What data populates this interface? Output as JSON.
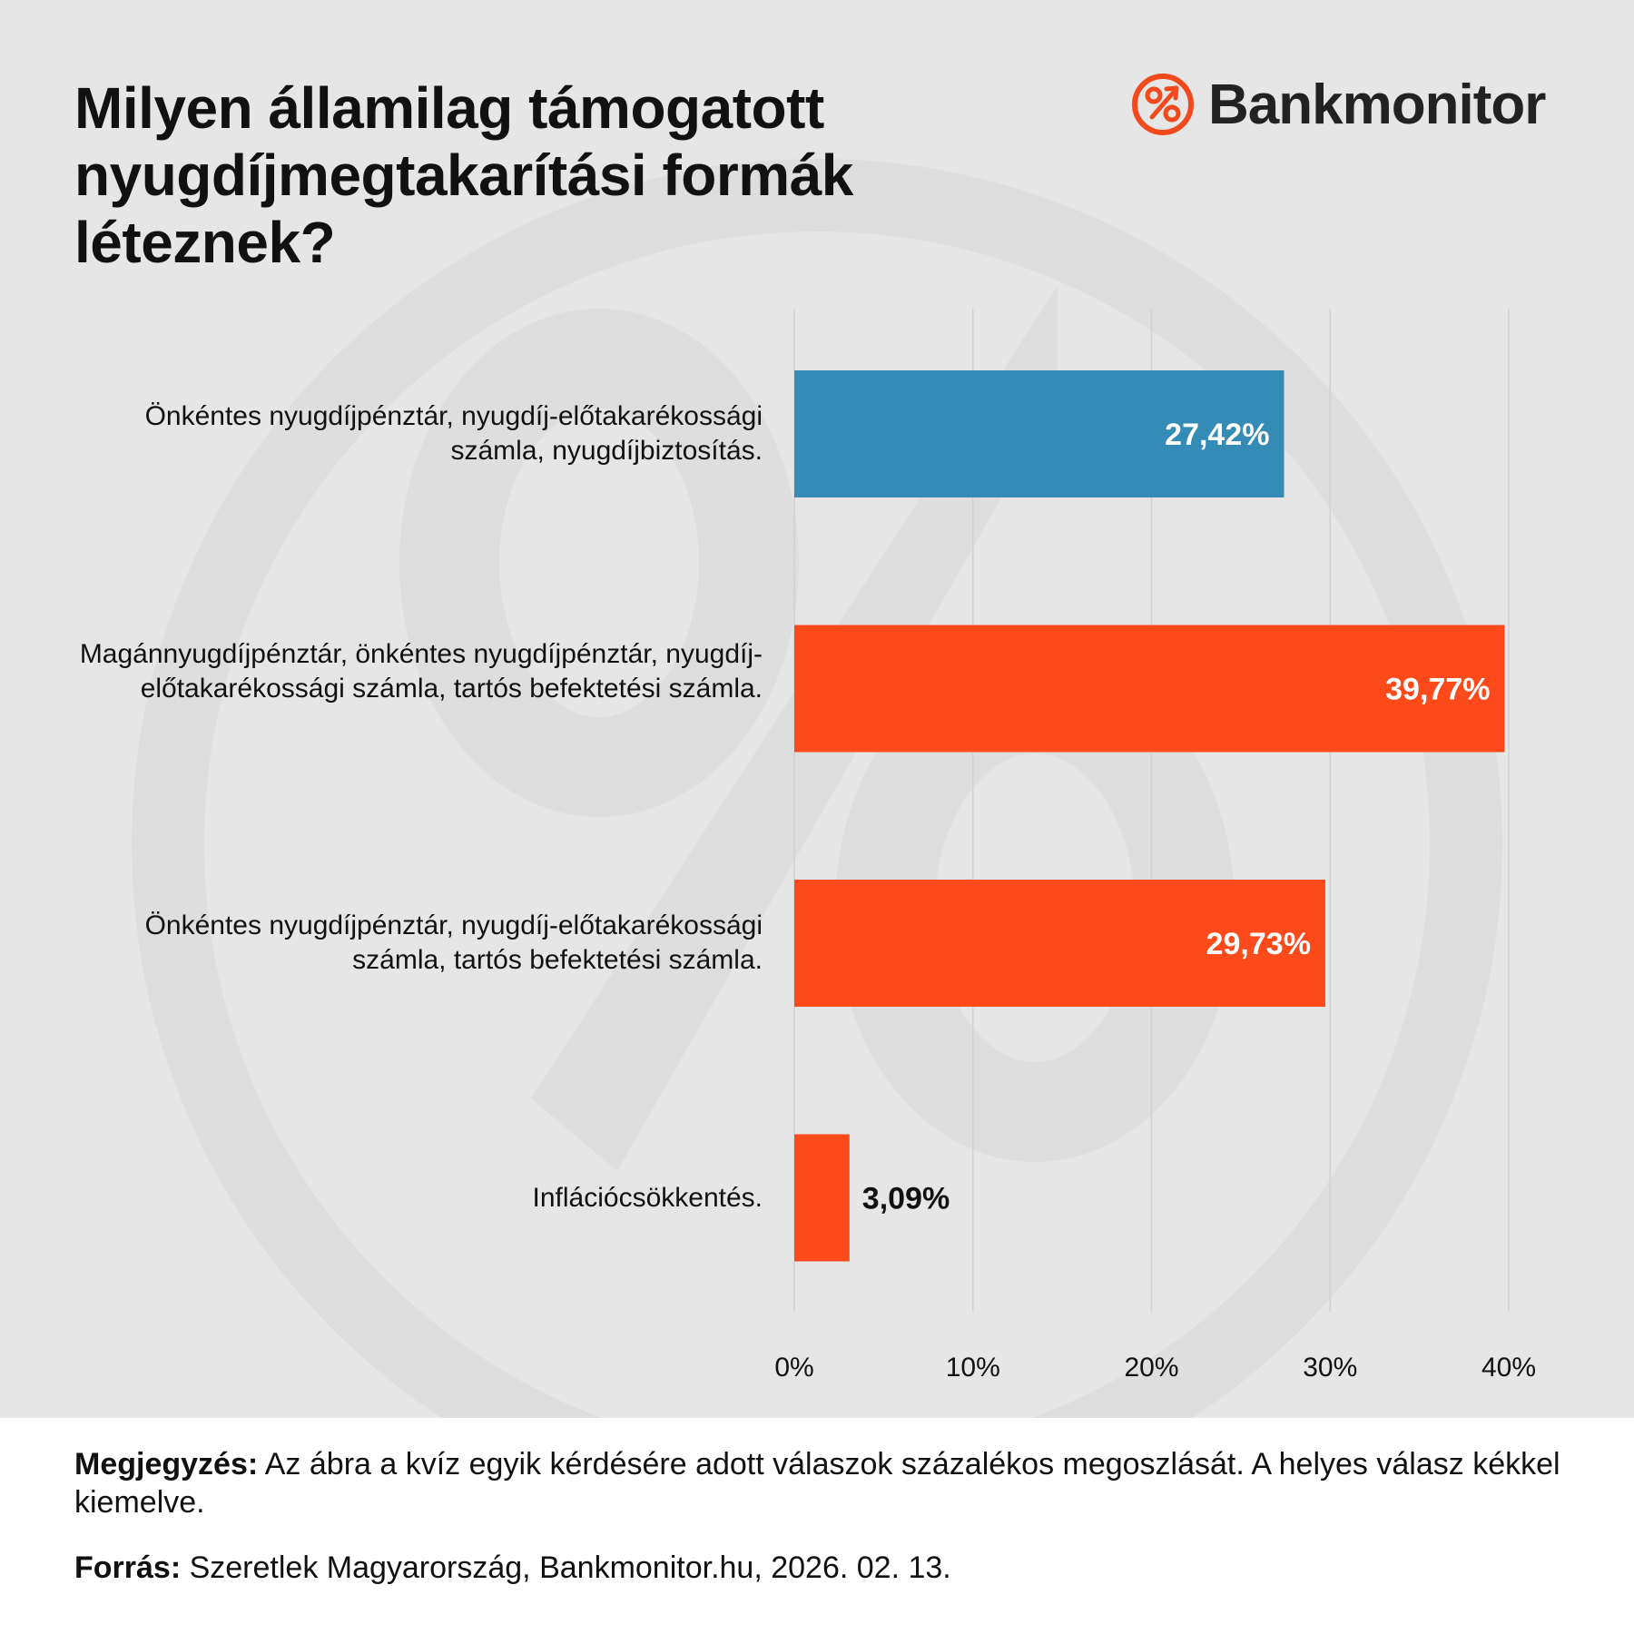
{
  "title": "Milyen államilag támogatott nyugdíjmegtakarítási formák léteznek?",
  "logo": {
    "text": "Bankmonitor",
    "icon": "percent-circle-icon",
    "color": "#f24a1d"
  },
  "colors": {
    "background": "#e6e6e6",
    "correct": "#348cb6",
    "incorrect": "#fc4a1a",
    "grid": "#d2d2d2"
  },
  "chart_data": {
    "type": "bar",
    "orientation": "horizontal",
    "categories": [
      "Önkéntes nyugdíjpénztár, nyugdíj-előtakarékossági számla, nyugdíjbiztosítás.",
      "Magánnyugdíjpénztár, önkéntes nyugdíjpénztár, nyugdíj-előtakarékossági számla, tartós befektetési számla.",
      "Önkéntes nyugdíjpénztár, nyugdíj-előtakarékossági számla, tartós befektetési számla.",
      "Inflációcsökkentés."
    ],
    "values": [
      27.42,
      39.77,
      29.73,
      3.09
    ],
    "value_labels": [
      "27,42%",
      "39,77%",
      "29,73%",
      "3,09%"
    ],
    "bar_colors": [
      "#348cb6",
      "#fc4a1a",
      "#fc4a1a",
      "#fc4a1a"
    ],
    "correct_index": 0,
    "xlim": [
      0,
      40
    ],
    "xticks": [
      0,
      10,
      20,
      30,
      40
    ],
    "xtick_labels": [
      "0%",
      "10%",
      "20%",
      "30%",
      "40%"
    ],
    "grid": "vertical",
    "xlabel": "",
    "ylabel": ""
  },
  "footer": {
    "note_label": "Megjegyzés:",
    "note_text": " Az ábra a kvíz egyik kérdésére adott válaszok százalékos megoszlását. A helyes válasz kékkel kiemelve.",
    "source_label": "Forrás:",
    "source_text": " Szeretlek Magyarország, Bankmonitor.hu, 2026. 02. 13."
  }
}
